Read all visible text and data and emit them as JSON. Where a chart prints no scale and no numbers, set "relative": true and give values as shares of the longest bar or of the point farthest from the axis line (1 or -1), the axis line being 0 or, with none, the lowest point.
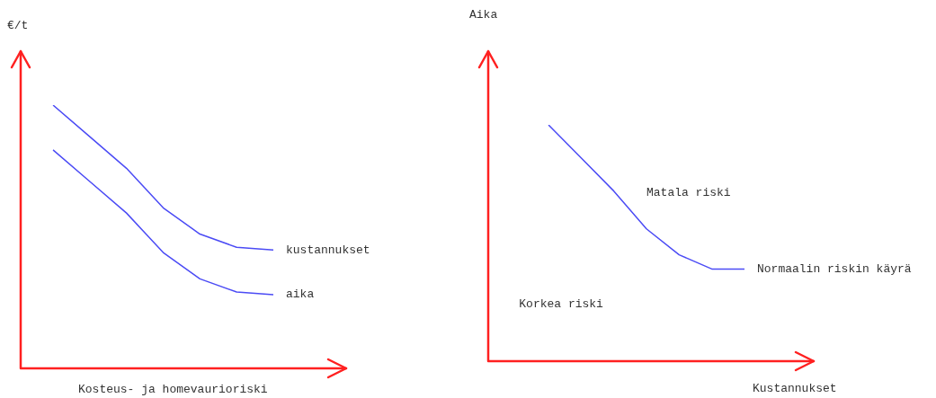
{
  "chart_data": [
    {
      "type": "line",
      "relative": true,
      "xlabel": "Kosteus- ja homevaurioriski",
      "ylabel": "€/t",
      "categories": [
        null,
        null,
        null,
        null,
        null,
        null,
        null
      ],
      "series": [
        {
          "name": "kustannukset",
          "color": "#4b4bf5",
          "values": [
            1,
            0.88,
            0.76,
            0.61,
            0.51,
            0.46,
            0.45
          ]
        },
        {
          "name": "aika",
          "color": "#4b4bf5",
          "values": [
            0.83,
            0.71,
            0.59,
            0.44,
            0.34,
            0.29,
            0.28
          ]
        }
      ]
    },
    {
      "type": "line",
      "relative": true,
      "xlabel": "Kustannukset",
      "ylabel": "Aika",
      "categories": [
        null,
        null,
        null,
        null,
        null,
        null,
        null
      ],
      "annotations": [
        "Matala riski",
        "Korkea riski"
      ],
      "series": [
        {
          "name": "Normaalin riskin käyrä",
          "color": "#4b4bf5",
          "values": [
            1,
            0.86,
            0.72,
            0.56,
            0.45,
            0.39,
            0.39
          ]
        }
      ]
    }
  ]
}
